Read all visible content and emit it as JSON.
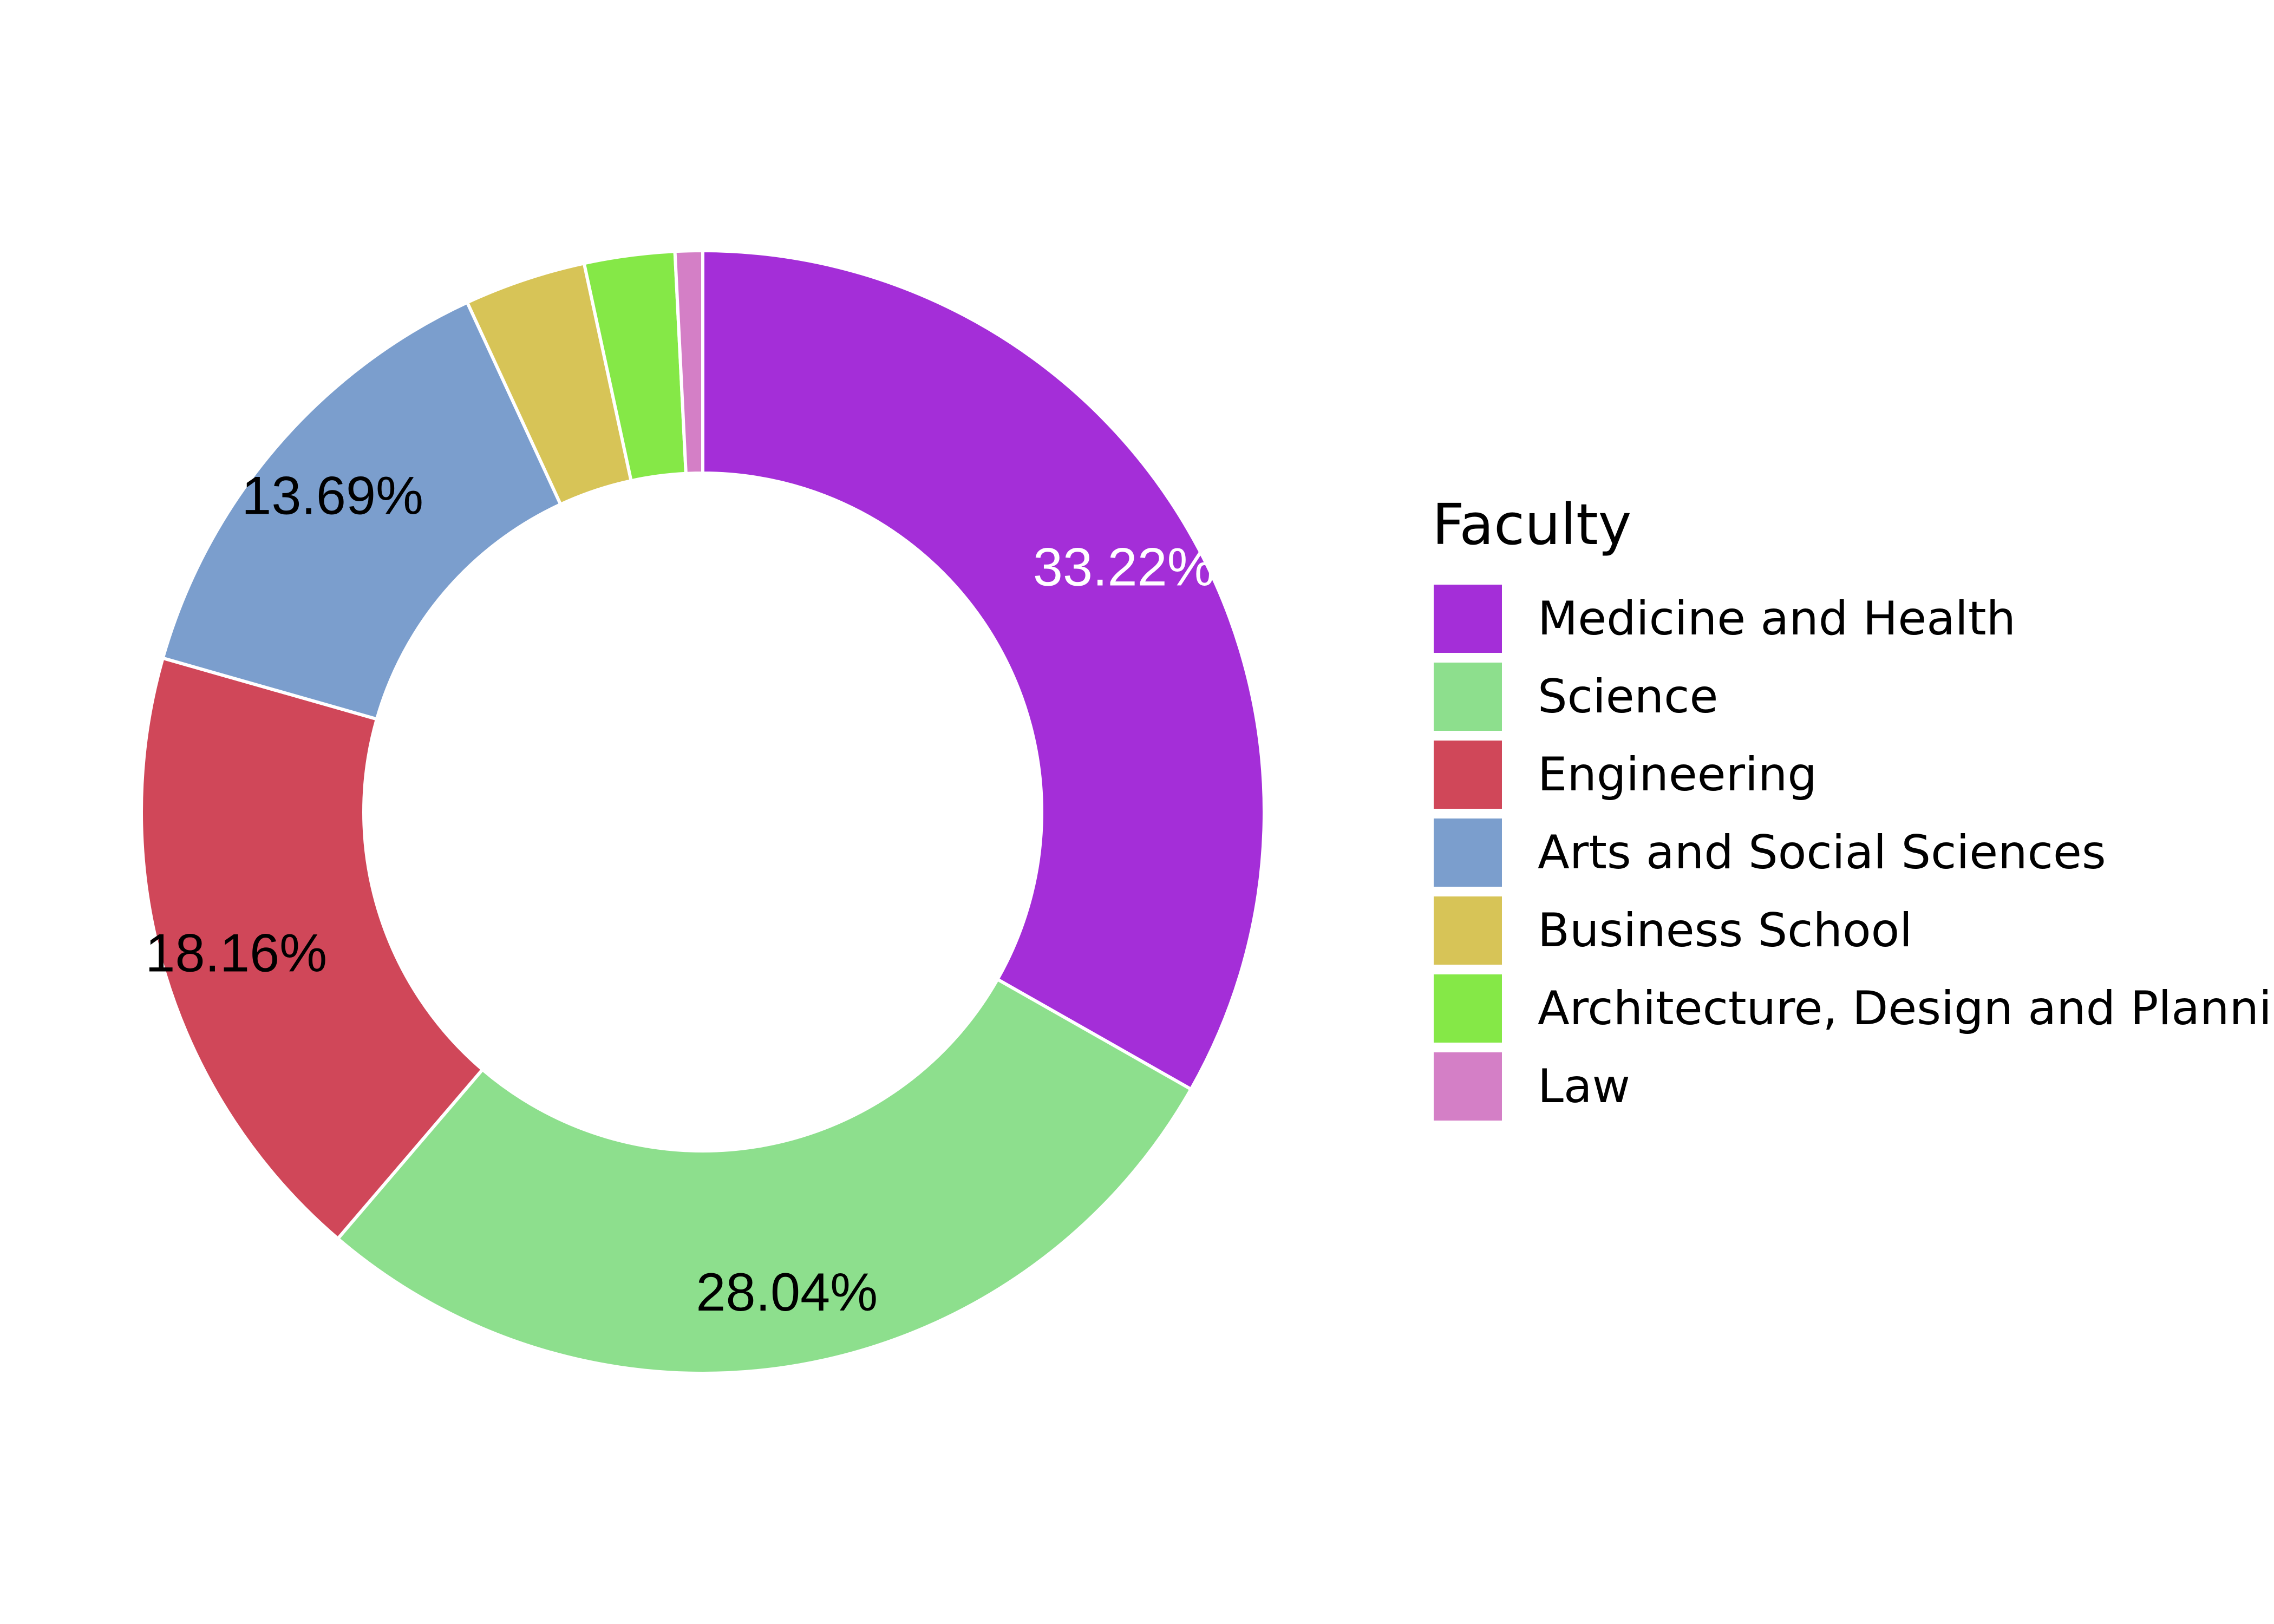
{
  "chart_data": {
    "type": "pie",
    "variant": "donut",
    "legend_title": "Faculty",
    "legend_position": "right",
    "slices": [
      {
        "label": "Medicine and Health",
        "value": 33.22,
        "display": "33.22%",
        "color": "#a42ed8",
        "label_color": "#ffffff"
      },
      {
        "label": "Science",
        "value": 28.04,
        "display": "28.04%",
        "color": "#8ddf8d",
        "label_color": "#000000"
      },
      {
        "label": "Engineering",
        "value": 18.16,
        "display": "18.16%",
        "color": "#d04759",
        "label_color": "#000000"
      },
      {
        "label": "Arts and Social Sciences",
        "value": 13.69,
        "display": "13.69%",
        "color": "#7b9ecd",
        "label_color": "#000000"
      },
      {
        "label": "Business School",
        "value": 3.5,
        "display": "",
        "color": "#d7c457",
        "label_color": "#000000"
      },
      {
        "label": "Architecture, Design and Planning",
        "value": 2.6,
        "display": "",
        "color": "#85e847",
        "label_color": "#000000"
      },
      {
        "label": "Law",
        "value": 0.79,
        "display": "",
        "color": "#d47fc6",
        "label_color": "#000000"
      }
    ]
  }
}
